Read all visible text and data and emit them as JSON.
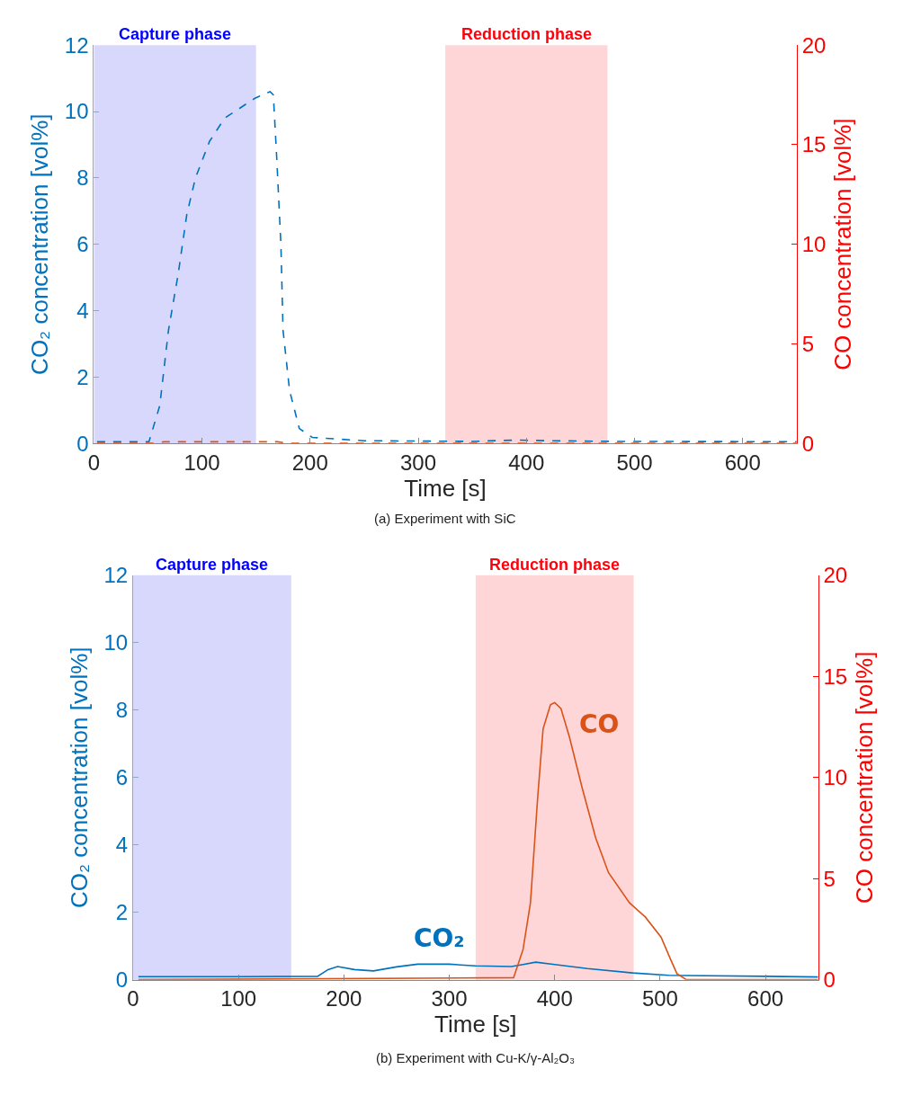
{
  "chart_data": [
    {
      "type": "line",
      "xlabel": "Time [s]",
      "ylabel": "CO₂ concentration [vol%]",
      "y2label": "CO concentration [vol%]",
      "xlim": [
        0,
        650
      ],
      "xticks": [
        0,
        100,
        200,
        300,
        400,
        500,
        600
      ],
      "ylim": [
        0,
        12
      ],
      "yticks": [
        0,
        2,
        4,
        6,
        8,
        10,
        12
      ],
      "y2lim": [
        0,
        20
      ],
      "y2ticks": [
        0,
        5,
        10,
        15,
        20
      ],
      "line_style": "dashed",
      "grid": false,
      "legend": false,
      "series": [
        {
          "color": "#0072bd",
          "x": [
            3,
            51,
            61,
            69,
            78,
            86,
            94,
            107,
            121,
            149,
            163,
            166,
            169,
            173,
            175,
            181,
            190,
            202,
            250,
            350,
            390,
            420,
            480,
            650
          ],
          "values": [
            0.05,
            0.05,
            1.14,
            3.4,
            5.1,
            6.9,
            8.0,
            9.1,
            9.8,
            10.4,
            10.6,
            10.5,
            8.7,
            6.0,
            3.4,
            1.6,
            0.45,
            0.18,
            0.08,
            0.06,
            0.1,
            0.08,
            0.06,
            0.05
          ]
        },
        {
          "color": "#d95319",
          "axis": "y2",
          "x": [
            3,
            55,
            65,
            170,
            180,
            650
          ],
          "values": [
            0,
            0,
            0.08,
            0.08,
            0,
            0
          ]
        }
      ],
      "bands": [
        {
          "axis": "x",
          "from": 0,
          "to": 150,
          "label": "Capture phase",
          "color": "#d8d8fc"
        },
        {
          "axis": "x",
          "from": 325,
          "to": 475,
          "label": "Reduction phase",
          "color": "#ffd6d8"
        }
      ],
      "annotations": [
        "(a) Experiment with SiC"
      ]
    },
    {
      "type": "line",
      "xlabel": "Time [s]",
      "ylabel": "CO₂ concentration [vol%]",
      "y2label": "CO concentration [vol%]",
      "xlim": [
        0,
        650
      ],
      "xticks": [
        0,
        100,
        200,
        300,
        400,
        500,
        600
      ],
      "ylim": [
        0,
        12
      ],
      "yticks": [
        0,
        2,
        4,
        6,
        8,
        10,
        12
      ],
      "y2lim": [
        0,
        20
      ],
      "y2ticks": [
        0,
        5,
        10,
        15,
        20
      ],
      "line_style": "solid",
      "grid": false,
      "legend": false,
      "series": [
        {
          "name": "CO₂",
          "color": "#0072bd",
          "x": [
            5,
            100,
            175,
            185,
            194,
            210,
            228,
            250,
            270,
            300,
            325,
            359,
            370,
            382,
            400,
            431,
            474,
            508,
            600,
            650
          ],
          "values": [
            0.09,
            0.09,
            0.1,
            0.3,
            0.39,
            0.3,
            0.26,
            0.38,
            0.46,
            0.46,
            0.41,
            0.39,
            0.45,
            0.52,
            0.45,
            0.33,
            0.2,
            0.13,
            0.1,
            0.08
          ]
        },
        {
          "name": "CO",
          "color": "#d95319",
          "axis": "y2",
          "x": [
            5,
            361,
            370,
            377,
            384,
            389,
            396,
            400,
            406,
            414,
            426,
            439,
            451,
            471,
            486,
            501,
            510,
            516,
            525,
            650
          ],
          "values": [
            0,
            0.1,
            1.5,
            3.8,
            9.1,
            12.4,
            13.6,
            13.7,
            13.4,
            12.0,
            9.5,
            7.0,
            5.3,
            3.8,
            3.1,
            2.1,
            1.0,
            0.3,
            0,
            0
          ]
        }
      ],
      "bands": [
        {
          "axis": "x",
          "from": 0,
          "to": 150,
          "label": "Capture phase",
          "color": "#d8d8fc"
        },
        {
          "axis": "x",
          "from": 325,
          "to": 475,
          "label": "Reduction phase",
          "color": "#ffd6d8"
        }
      ],
      "annotations": [
        "(b) Experiment with Cu-K/γ-Al₂O₃"
      ]
    }
  ]
}
